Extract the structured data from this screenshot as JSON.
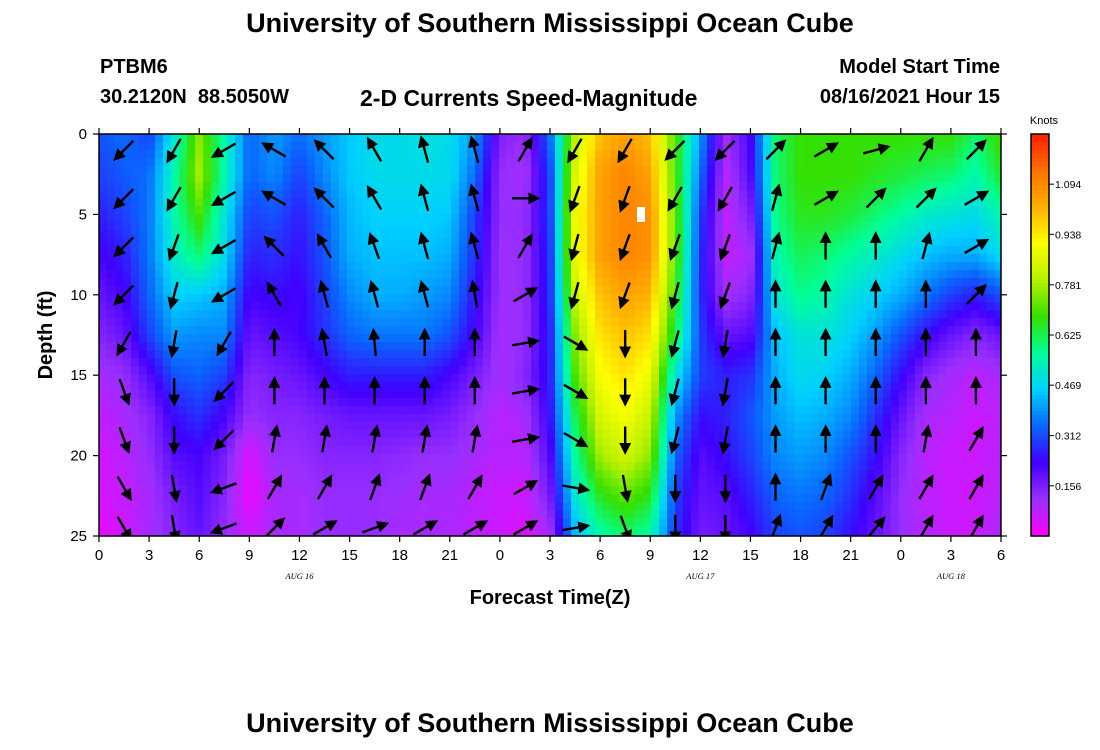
{
  "header": {
    "title": "University of Southern Mississippi Ocean Cube",
    "station": "PTBM6",
    "coords": "30.2120N  88.5050W",
    "plot_title": "2-D Currents Speed-Magnitude",
    "model_start_label": "Model Start Time",
    "model_start_value": "08/16/2021 Hour 15"
  },
  "footer": {
    "title": "University of Southern Mississippi Ocean Cube"
  },
  "colors": {
    "colormap": [
      "#ff00ff",
      "#9b2fff",
      "#4000ff",
      "#0a64ff",
      "#00cfff",
      "#00ff9a",
      "#35e000",
      "#b6f000",
      "#ffff00",
      "#ffb000",
      "#ff7000",
      "#ff2000"
    ],
    "arrow": "#000000",
    "marker": "#ffffff"
  },
  "chart_data": {
    "type": "heatmap",
    "xlabel": "Forecast Time(Z)",
    "ylabel": "Depth (ft)",
    "x_ticks": [
      "0",
      "3",
      "6",
      "9",
      "12",
      "15",
      "18",
      "21",
      "0",
      "3",
      "6",
      "9",
      "12",
      "15",
      "18",
      "21",
      "0",
      "3",
      "6"
    ],
    "x_range_hours": [
      0,
      54
    ],
    "day_labels": [
      {
        "label": "AUG  16",
        "hour": 12
      },
      {
        "label": "AUG  17",
        "hour": 36
      },
      {
        "label": "AUG  18",
        "hour": 51
      }
    ],
    "y_ticks": [
      "0",
      "5",
      "10",
      "15",
      "20",
      "25"
    ],
    "ylim": [
      0,
      25
    ],
    "y_inverted": true,
    "colorbar": {
      "label": "Knots",
      "min": 0,
      "max": 1.25,
      "ticks": [
        "1.094",
        "0.938",
        "0.781",
        "0.625",
        "0.469",
        "0.312",
        "0.156"
      ],
      "tick_values": [
        1.094,
        0.938,
        0.781,
        0.625,
        0.469,
        0.312,
        0.156
      ]
    },
    "speed_knots": {
      "hours": [
        0,
        1.5,
        3,
        4.5,
        6,
        7.5,
        9,
        10.5,
        12,
        13.5,
        15,
        16.5,
        18,
        19.5,
        21,
        22.5,
        24,
        25.5,
        27,
        28.5,
        30,
        31.5,
        33,
        34.5,
        36,
        37.5,
        39,
        40.5,
        42,
        43.5,
        45,
        46.5,
        48,
        49.5,
        51,
        52.5,
        54
      ],
      "depths_ft": [
        0,
        2.5,
        5,
        7.5,
        10,
        12.5,
        15,
        17.5,
        20,
        22.5,
        25
      ],
      "values": [
        [
          0.32,
          0.35,
          0.3,
          0.5,
          0.75,
          0.55,
          0.34,
          0.4,
          0.35,
          0.4,
          0.45,
          0.48,
          0.48,
          0.5,
          0.48,
          0.4,
          0.15,
          0.12,
          0.35,
          0.8,
          1.0,
          1.05,
          1.0,
          0.7,
          0.4,
          0.1,
          0.22,
          0.6,
          0.68,
          0.68,
          0.68,
          0.68,
          0.68,
          0.68,
          0.68,
          0.6,
          0.7
        ],
        [
          0.3,
          0.33,
          0.35,
          0.55,
          0.78,
          0.55,
          0.34,
          0.38,
          0.3,
          0.38,
          0.45,
          0.48,
          0.48,
          0.48,
          0.48,
          0.35,
          0.12,
          0.1,
          0.3,
          0.85,
          1.05,
          1.1,
          1.05,
          0.7,
          0.35,
          0.08,
          0.2,
          0.6,
          0.68,
          0.68,
          0.68,
          0.66,
          0.64,
          0.62,
          0.6,
          0.55,
          0.65
        ],
        [
          0.26,
          0.3,
          0.36,
          0.55,
          0.7,
          0.5,
          0.3,
          0.32,
          0.26,
          0.34,
          0.43,
          0.46,
          0.46,
          0.46,
          0.45,
          0.3,
          0.12,
          0.12,
          0.3,
          0.88,
          1.05,
          1.1,
          1.08,
          0.72,
          0.3,
          0.07,
          0.15,
          0.58,
          0.66,
          0.66,
          0.64,
          0.6,
          0.56,
          0.52,
          0.5,
          0.48,
          0.55
        ],
        [
          0.22,
          0.26,
          0.36,
          0.52,
          0.6,
          0.48,
          0.26,
          0.28,
          0.24,
          0.32,
          0.42,
          0.44,
          0.44,
          0.44,
          0.42,
          0.28,
          0.11,
          0.12,
          0.28,
          0.88,
          1.05,
          1.1,
          1.08,
          0.72,
          0.28,
          0.07,
          0.1,
          0.55,
          0.62,
          0.6,
          0.56,
          0.52,
          0.48,
          0.44,
          0.42,
          0.42,
          0.48
        ],
        [
          0.18,
          0.22,
          0.34,
          0.46,
          0.45,
          0.42,
          0.22,
          0.24,
          0.22,
          0.3,
          0.38,
          0.42,
          0.42,
          0.4,
          0.38,
          0.25,
          0.11,
          0.12,
          0.28,
          0.82,
          1.0,
          1.05,
          1.02,
          0.68,
          0.28,
          0.1,
          0.14,
          0.5,
          0.58,
          0.55,
          0.5,
          0.46,
          0.42,
          0.36,
          0.3,
          0.26,
          0.32
        ],
        [
          0.14,
          0.18,
          0.3,
          0.4,
          0.38,
          0.38,
          0.18,
          0.2,
          0.22,
          0.28,
          0.34,
          0.36,
          0.36,
          0.36,
          0.32,
          0.22,
          0.1,
          0.12,
          0.26,
          0.75,
          0.95,
          1.0,
          0.95,
          0.62,
          0.3,
          0.18,
          0.2,
          0.44,
          0.5,
          0.5,
          0.46,
          0.4,
          0.32,
          0.24,
          0.18,
          0.14,
          0.18
        ],
        [
          0.1,
          0.12,
          0.2,
          0.32,
          0.34,
          0.3,
          0.14,
          0.16,
          0.18,
          0.22,
          0.26,
          0.26,
          0.26,
          0.26,
          0.22,
          0.16,
          0.1,
          0.14,
          0.26,
          0.7,
          0.9,
          0.95,
          0.88,
          0.5,
          0.3,
          0.26,
          0.28,
          0.42,
          0.48,
          0.46,
          0.42,
          0.34,
          0.24,
          0.14,
          0.1,
          0.08,
          0.1
        ],
        [
          0.07,
          0.1,
          0.14,
          0.24,
          0.28,
          0.22,
          0.12,
          0.14,
          0.14,
          0.16,
          0.18,
          0.18,
          0.18,
          0.18,
          0.16,
          0.12,
          0.08,
          0.1,
          0.24,
          0.62,
          0.85,
          0.9,
          0.82,
          0.4,
          0.24,
          0.26,
          0.32,
          0.4,
          0.44,
          0.42,
          0.38,
          0.28,
          0.18,
          0.1,
          0.08,
          0.06,
          0.08
        ],
        [
          0.05,
          0.08,
          0.12,
          0.2,
          0.22,
          0.16,
          0.04,
          0.12,
          0.12,
          0.14,
          0.14,
          0.14,
          0.13,
          0.12,
          0.12,
          0.1,
          0.08,
          0.08,
          0.2,
          0.56,
          0.78,
          0.84,
          0.76,
          0.34,
          0.2,
          0.24,
          0.3,
          0.38,
          0.4,
          0.38,
          0.32,
          0.24,
          0.14,
          0.08,
          0.06,
          0.06,
          0.08
        ],
        [
          0.04,
          0.07,
          0.1,
          0.16,
          0.2,
          0.14,
          0.02,
          0.1,
          0.1,
          0.12,
          0.12,
          0.12,
          0.11,
          0.1,
          0.1,
          0.08,
          0.06,
          0.06,
          0.16,
          0.5,
          0.66,
          0.72,
          0.66,
          0.3,
          0.18,
          0.2,
          0.26,
          0.34,
          0.36,
          0.34,
          0.28,
          0.2,
          0.12,
          0.08,
          0.06,
          0.06,
          0.08
        ],
        [
          0.02,
          0.06,
          0.1,
          0.14,
          0.18,
          0.12,
          0.06,
          0.1,
          0.1,
          0.12,
          0.12,
          0.12,
          0.1,
          0.1,
          0.09,
          0.08,
          0.06,
          0.04,
          0.1,
          0.42,
          0.55,
          0.6,
          0.55,
          0.28,
          0.16,
          0.18,
          0.22,
          0.3,
          0.32,
          0.3,
          0.24,
          0.18,
          0.12,
          0.08,
          0.06,
          0.06,
          0.1
        ]
      ]
    },
    "vector_directions_deg": {
      "hours": [
        1.5,
        4.5,
        7.5,
        10.5,
        13.5,
        16.5,
        19.5,
        22.5,
        25.5,
        28.5,
        31.5,
        34.5,
        37.5,
        40.5,
        43.5,
        46.5,
        49.5,
        52.5
      ],
      "depths_ft": [
        1,
        4,
        7,
        10,
        13,
        16,
        19,
        22,
        24.5
      ],
      "values": [
        [
          225,
          210,
          240,
          300,
          315,
          330,
          345,
          345,
          30,
          210,
          210,
          225,
          225,
          45,
          60,
          75,
          30,
          45
        ],
        [
          225,
          210,
          240,
          300,
          315,
          330,
          345,
          345,
          90,
          200,
          200,
          210,
          210,
          15,
          60,
          45,
          45,
          60
        ],
        [
          225,
          200,
          240,
          315,
          330,
          340,
          345,
          345,
          30,
          195,
          200,
          200,
          200,
          15,
          0,
          0,
          15,
          60
        ],
        [
          225,
          195,
          240,
          330,
          345,
          345,
          345,
          350,
          60,
          195,
          200,
          195,
          200,
          0,
          0,
          0,
          0,
          45
        ],
        [
          210,
          190,
          210,
          0,
          350,
          355,
          0,
          0,
          80,
          120,
          180,
          195,
          190,
          0,
          0,
          0,
          0,
          0
        ],
        [
          160,
          180,
          225,
          0,
          0,
          0,
          0,
          0,
          80,
          120,
          180,
          195,
          190,
          0,
          0,
          0,
          0,
          0
        ],
        [
          160,
          180,
          225,
          10,
          10,
          10,
          10,
          10,
          80,
          120,
          180,
          195,
          190,
          0,
          0,
          0,
          10,
          30
        ],
        [
          150,
          170,
          250,
          30,
          30,
          20,
          20,
          30,
          60,
          100,
          170,
          180,
          180,
          0,
          20,
          30,
          30,
          30
        ],
        [
          150,
          170,
          250,
          45,
          60,
          70,
          60,
          60,
          60,
          80,
          160,
          180,
          180,
          20,
          30,
          40,
          30,
          30
        ]
      ]
    }
  }
}
